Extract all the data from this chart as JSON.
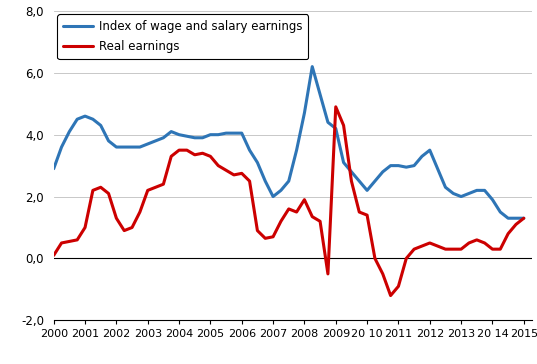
{
  "blue_label": "Index of wage and salary earnings",
  "red_label": "Real earnings",
  "blue_color": "#2e75b6",
  "red_color": "#cc0000",
  "ylim": [
    -2.0,
    8.0
  ],
  "yticks": [
    -2.0,
    0.0,
    2.0,
    4.0,
    6.0,
    8.0
  ],
  "ytick_labels": [
    "-2,0",
    "0,0",
    "2,0",
    "4,0",
    "6,0",
    "8,0"
  ],
  "xtick_positions": [
    2000,
    2001,
    2002,
    2003,
    2004,
    2005,
    2006,
    2007,
    2008,
    2009,
    2010,
    2011,
    2012,
    2013,
    2014,
    2015
  ],
  "xtick_labels": [
    "2000",
    "2001",
    "2002",
    "2003",
    "2004",
    "2005",
    "2006",
    "2007",
    "2008",
    "2009",
    "20 10",
    "2011",
    "2012",
    "2013",
    "20 14",
    "2015"
  ],
  "blue_x": [
    2000.0,
    2000.25,
    2000.5,
    2000.75,
    2001.0,
    2001.25,
    2001.5,
    2001.75,
    2002.0,
    2002.25,
    2002.5,
    2002.75,
    2003.0,
    2003.25,
    2003.5,
    2003.75,
    2004.0,
    2004.25,
    2004.5,
    2004.75,
    2005.0,
    2005.25,
    2005.5,
    2005.75,
    2006.0,
    2006.25,
    2006.5,
    2006.75,
    2007.0,
    2007.25,
    2007.5,
    2007.75,
    2008.0,
    2008.25,
    2008.5,
    2008.75,
    2009.0,
    2009.25,
    2009.5,
    2009.75,
    2010.0,
    2010.25,
    2010.5,
    2010.75,
    2011.0,
    2011.25,
    2011.5,
    2011.75,
    2012.0,
    2012.25,
    2012.5,
    2012.75,
    2013.0,
    2013.25,
    2013.5,
    2013.75,
    2014.0,
    2014.25,
    2014.5,
    2014.75,
    2015.0
  ],
  "blue_y": [
    2.9,
    3.6,
    4.1,
    4.5,
    4.6,
    4.5,
    4.3,
    3.8,
    3.6,
    3.6,
    3.6,
    3.6,
    3.7,
    3.8,
    3.9,
    4.1,
    4.0,
    3.95,
    3.9,
    3.9,
    4.0,
    4.0,
    4.05,
    4.05,
    4.05,
    3.5,
    3.1,
    2.5,
    2.0,
    2.2,
    2.5,
    3.5,
    4.7,
    6.2,
    5.3,
    4.4,
    4.2,
    3.1,
    2.8,
    2.5,
    2.2,
    2.5,
    2.8,
    3.0,
    3.0,
    2.95,
    3.0,
    3.3,
    3.5,
    2.9,
    2.3,
    2.1,
    2.0,
    2.1,
    2.2,
    2.2,
    1.9,
    1.5,
    1.3,
    1.3,
    1.3
  ],
  "red_x": [
    2000.0,
    2000.25,
    2000.5,
    2000.75,
    2001.0,
    2001.25,
    2001.5,
    2001.75,
    2002.0,
    2002.25,
    2002.5,
    2002.75,
    2003.0,
    2003.25,
    2003.5,
    2003.75,
    2004.0,
    2004.25,
    2004.5,
    2004.75,
    2005.0,
    2005.25,
    2005.5,
    2005.75,
    2006.0,
    2006.25,
    2006.5,
    2006.75,
    2007.0,
    2007.25,
    2007.5,
    2007.75,
    2008.0,
    2008.25,
    2008.5,
    2008.75,
    2009.0,
    2009.25,
    2009.5,
    2009.75,
    2010.0,
    2010.25,
    2010.5,
    2010.75,
    2011.0,
    2011.25,
    2011.5,
    2011.75,
    2012.0,
    2012.25,
    2012.5,
    2012.75,
    2013.0,
    2013.25,
    2013.5,
    2013.75,
    2014.0,
    2014.25,
    2014.5,
    2014.75,
    2015.0
  ],
  "red_y": [
    0.1,
    0.5,
    0.55,
    0.6,
    1.0,
    2.2,
    2.3,
    2.1,
    1.3,
    0.9,
    1.0,
    1.5,
    2.2,
    2.3,
    2.4,
    3.3,
    3.5,
    3.5,
    3.35,
    3.4,
    3.3,
    3.0,
    2.85,
    2.7,
    2.75,
    2.5,
    0.9,
    0.65,
    0.7,
    1.2,
    1.6,
    1.5,
    1.9,
    1.35,
    1.2,
    -0.5,
    4.9,
    4.3,
    2.5,
    1.5,
    1.4,
    0.0,
    -0.5,
    -1.2,
    -0.9,
    0.0,
    0.3,
    0.4,
    0.5,
    0.4,
    0.3,
    0.3,
    0.3,
    0.5,
    0.6,
    0.5,
    0.3,
    0.3,
    0.8,
    1.1,
    1.3
  ],
  "background_color": "#ffffff",
  "line_width": 2.2,
  "figsize": [
    5.37,
    3.64
  ],
  "dpi": 100
}
